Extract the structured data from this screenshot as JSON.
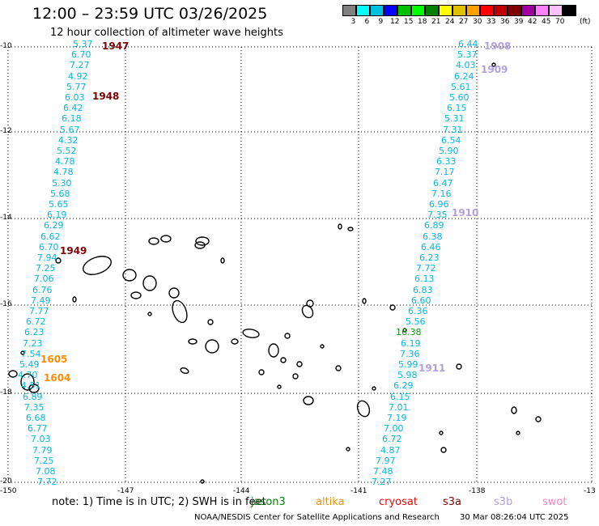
{
  "header": {
    "title": "12:00 – 23:59 UTC 03/26/2025",
    "subtitle": "12 hour collection of altimeter wave heights"
  },
  "colorbar": {
    "unit": "(ft)",
    "ticks": [
      "3",
      "6",
      "9",
      "12",
      "15",
      "18",
      "21",
      "24",
      "27",
      "30",
      "33",
      "36",
      "39",
      "42",
      "45",
      "70"
    ],
    "colors": [
      "#808080",
      "#00ffff",
      "#00c0e0",
      "#0000ff",
      "#00c000",
      "#00ff00",
      "#008000",
      "#ffff00",
      "#e0c000",
      "#ffa000",
      "#ff0000",
      "#c00000",
      "#800000",
      "#a000a0",
      "#ff80ff",
      "#ffc0ff",
      "#000000"
    ]
  },
  "axes": {
    "lat_labels": [
      "-10",
      "-12",
      "-14",
      "-16",
      "-18",
      "-20"
    ],
    "lon_labels": [
      "-150",
      "-147",
      "-144",
      "-141",
      "-138",
      "-13"
    ]
  },
  "tracks": {
    "west": [
      "5.37",
      "6.70",
      "7.27",
      "4.92",
      "5.77",
      "6.03",
      "6.42",
      "6.18",
      "5.67",
      "4.32",
      "5.52",
      "4.78",
      "4.78",
      "5.30",
      "5.68",
      "5.65",
      "6.19",
      "6.29",
      "6.62",
      "6.70",
      "7.94",
      "7.25",
      "7.06",
      "6.76",
      "7.49",
      "7.77",
      "6.72",
      "6.23",
      "7.23",
      "7.54",
      "5.49",
      "4.70",
      "4.51",
      "6.89",
      "7.35",
      "6.68",
      "6.77",
      "7.03",
      "7.79",
      "7.25",
      "7.08",
      "7.72"
    ],
    "east": [
      "6.44",
      "5.37",
      "4.03",
      "6.24",
      "5.61",
      "5.60",
      "6.15",
      "5.31",
      "7.31",
      "6.54",
      "5.90",
      "6.33",
      "7.17",
      "6.47",
      "7.16",
      "6.96",
      "7.35",
      "6.89",
      "6.38",
      "6.46",
      "6.23",
      "7.72",
      "6.13",
      "6.83",
      "6.60",
      "6.36",
      "5.56",
      "16.38",
      "6.19",
      "7.36",
      "5.99",
      "5.98",
      "6.29",
      "6.15",
      "7.01",
      "7.19",
      "7.00",
      "6.72",
      "4.87",
      "7.97",
      "7.48",
      "7.27"
    ]
  },
  "passes": [
    {
      "label": "1947",
      "color": "#800000"
    },
    {
      "label": "1948",
      "color": "#800000"
    },
    {
      "label": "1949",
      "color": "#800000"
    },
    {
      "label": "1605",
      "color": "#ff8c00"
    },
    {
      "label": "1604",
      "color": "#ff8c00"
    },
    {
      "label": "1908",
      "color": "#b0a0e0"
    },
    {
      "label": "1909",
      "color": "#b0a0e0"
    },
    {
      "label": "1910",
      "color": "#b0a0e0"
    },
    {
      "label": "1911",
      "color": "#b0a0e0"
    }
  ],
  "footer": {
    "note": "note:  1) Time is in UTC; 2) SWH is in feet",
    "legend": [
      {
        "label": "jason3",
        "color": "#008000"
      },
      {
        "label": "altika",
        "color": "#ff8c00"
      },
      {
        "label": "cryosat",
        "color": "#ff0000"
      },
      {
        "label": "s3a",
        "color": "#800000"
      },
      {
        "label": "s3b",
        "color": "#b0a0e0"
      },
      {
        "label": "swot",
        "color": "#ff80c0"
      }
    ],
    "credit": "NOAA/NESDIS Center for Satellite Applications and Research",
    "timestamp": "30 Mar 08:26:04 UTC 2025"
  },
  "value_color": "#00b8e8",
  "highlight_color": "#00a000"
}
